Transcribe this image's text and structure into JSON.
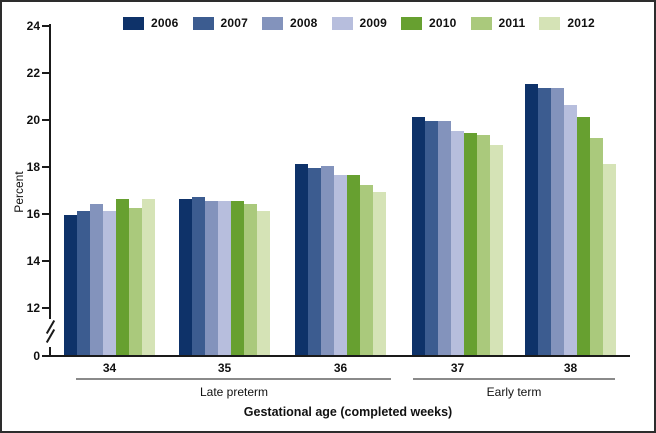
{
  "figure": {
    "percent_label": "Percent",
    "x_axis_title": "Gestational age (completed weeks)"
  },
  "chart_data": {
    "type": "bar",
    "title": "",
    "ylabel": "Percent",
    "xlabel": "Gestational age (completed weeks)",
    "categories": [
      "34",
      "35",
      "36",
      "37",
      "38"
    ],
    "category_sections": [
      {
        "label": "Late preterm",
        "categories": [
          "34",
          "35",
          "36"
        ]
      },
      {
        "label": "Early term",
        "categories": [
          "37",
          "38"
        ]
      }
    ],
    "series": [
      {
        "name": "2006",
        "color": "#0e3269",
        "values": [
          15.9,
          16.6,
          18.1,
          20.1,
          21.5
        ]
      },
      {
        "name": "2007",
        "color": "#3c5c90",
        "values": [
          16.1,
          16.7,
          17.9,
          19.9,
          21.3
        ]
      },
      {
        "name": "2008",
        "color": "#8393bc",
        "values": [
          16.4,
          16.5,
          18.0,
          19.9,
          21.3
        ]
      },
      {
        "name": "2009",
        "color": "#b7bedd",
        "values": [
          16.1,
          16.5,
          17.6,
          19.5,
          20.6
        ]
      },
      {
        "name": "2010",
        "color": "#67a030",
        "values": [
          16.6,
          16.5,
          17.6,
          19.4,
          20.1
        ]
      },
      {
        "name": "2011",
        "color": "#aac97c",
        "values": [
          16.2,
          16.4,
          17.2,
          19.3,
          19.2
        ]
      },
      {
        "name": "2012",
        "color": "#d5e3b6",
        "values": [
          16.6,
          16.1,
          16.9,
          18.9,
          18.1
        ]
      }
    ],
    "y_ticks": [
      24,
      22,
      20,
      18,
      16,
      14,
      12,
      0
    ],
    "ylim_display": [
      12,
      24
    ],
    "axis_break": true,
    "grid": false,
    "legend_position": "top"
  }
}
